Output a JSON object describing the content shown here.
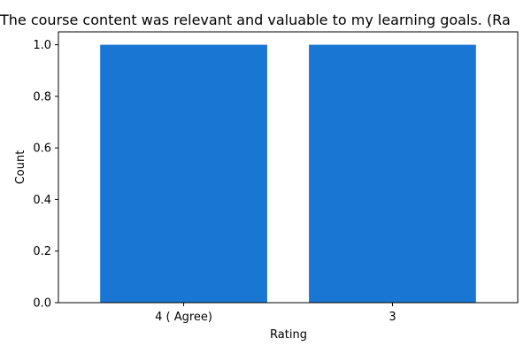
{
  "colors": {
    "bar": "#1976d2"
  },
  "chart_data": {
    "type": "bar",
    "title": "The course content was relevant and valuable to my learning goals. (Ra",
    "xlabel": "Rating",
    "ylabel": "Count",
    "categories": [
      "4 ( Agree)",
      "3"
    ],
    "values": [
      1,
      1
    ],
    "ylim": [
      0,
      1.05
    ],
    "yticks": [
      "0.0",
      "0.2",
      "0.4",
      "0.6",
      "0.8",
      "1.0"
    ],
    "grid": false,
    "legend": "none"
  }
}
